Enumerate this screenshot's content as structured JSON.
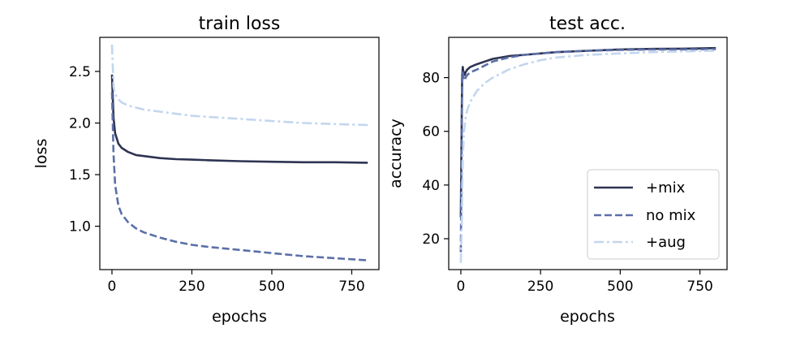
{
  "colors": {
    "mix": "#2e3352",
    "nomix": "#5b6fa8",
    "aug": "#c3d6ee"
  },
  "chart_data": [
    {
      "type": "line",
      "title": "train loss",
      "xlabel": "epochs",
      "ylabel": "loss",
      "xlim": [
        -38,
        835
      ],
      "ylim": [
        0.58,
        2.83
      ],
      "xticks": [
        0,
        250,
        500,
        750
      ],
      "yticks": [
        1.0,
        1.5,
        2.0,
        2.5
      ],
      "ytick_labels": [
        "1.0",
        "1.5",
        "2.0",
        "2.5"
      ],
      "series": [
        {
          "name": "+mix",
          "style": "solid",
          "color_key": "mix",
          "x": [
            0,
            5,
            10,
            20,
            30,
            50,
            75,
            100,
            150,
            200,
            250,
            300,
            400,
            500,
            600,
            700,
            800
          ],
          "y": [
            2.47,
            2.05,
            1.9,
            1.8,
            1.76,
            1.72,
            1.69,
            1.68,
            1.66,
            1.65,
            1.645,
            1.64,
            1.63,
            1.625,
            1.62,
            1.62,
            1.615
          ]
        },
        {
          "name": "no mix",
          "style": "dashed",
          "color_key": "nomix",
          "x": [
            0,
            5,
            10,
            20,
            30,
            50,
            75,
            100,
            150,
            200,
            250,
            300,
            400,
            500,
            600,
            700,
            800
          ],
          "y": [
            2.3,
            1.7,
            1.4,
            1.2,
            1.12,
            1.04,
            0.98,
            0.94,
            0.89,
            0.85,
            0.82,
            0.8,
            0.77,
            0.74,
            0.71,
            0.69,
            0.67
          ]
        },
        {
          "name": "+aug",
          "style": "dashdot",
          "color_key": "aug",
          "x": [
            0,
            5,
            10,
            20,
            30,
            50,
            75,
            100,
            150,
            200,
            250,
            300,
            400,
            500,
            600,
            700,
            800
          ],
          "y": [
            2.76,
            2.35,
            2.28,
            2.23,
            2.2,
            2.17,
            2.15,
            2.13,
            2.11,
            2.09,
            2.07,
            2.06,
            2.04,
            2.02,
            2.0,
            1.99,
            1.98
          ]
        }
      ]
    },
    {
      "type": "line",
      "title": "test acc.",
      "xlabel": "epochs",
      "ylabel": "accuracy",
      "xlim": [
        -38,
        835
      ],
      "ylim": [
        8.5,
        95
      ],
      "xticks": [
        0,
        250,
        500,
        750
      ],
      "yticks": [
        20,
        40,
        60,
        80
      ],
      "ytick_labels": [
        "20",
        "40",
        "60",
        "80"
      ],
      "legend": {
        "position": "lower-right",
        "entries": [
          "+mix",
          "no mix",
          "+aug"
        ]
      },
      "series": [
        {
          "name": "+mix",
          "style": "solid",
          "color_key": "mix",
          "x": [
            0,
            2,
            4,
            6,
            8,
            10,
            12,
            15,
            20,
            30,
            50,
            75,
            100,
            150,
            200,
            250,
            300,
            400,
            500,
            600,
            700,
            800
          ],
          "y": [
            28,
            55,
            80,
            84,
            82,
            82,
            81,
            82,
            83,
            84,
            85,
            86,
            87,
            88,
            88.5,
            89,
            89.5,
            90,
            90.5,
            90.7,
            90.8,
            91
          ]
        },
        {
          "name": "no mix",
          "style": "dashed",
          "color_key": "nomix",
          "x": [
            0,
            2,
            4,
            6,
            8,
            10,
            12,
            15,
            20,
            30,
            50,
            75,
            100,
            150,
            200,
            250,
            300,
            400,
            500,
            600,
            700,
            800
          ],
          "y": [
            15,
            45,
            78,
            82,
            80,
            79,
            79,
            80,
            81,
            82,
            83,
            84.5,
            86,
            87.5,
            88.5,
            89,
            89.5,
            90,
            90.3,
            90.5,
            90.5,
            90.6
          ]
        },
        {
          "name": "+aug",
          "style": "dashdot",
          "color_key": "aug",
          "x": [
            0,
            3,
            6,
            10,
            15,
            20,
            30,
            40,
            50,
            75,
            100,
            150,
            200,
            250,
            300,
            400,
            500,
            600,
            700,
            800
          ],
          "y": [
            11,
            25,
            50,
            60,
            65,
            68,
            71,
            73,
            75,
            78,
            80,
            83,
            85,
            86.5,
            87.5,
            88.5,
            89,
            89.5,
            89.8,
            90
          ]
        }
      ]
    }
  ]
}
